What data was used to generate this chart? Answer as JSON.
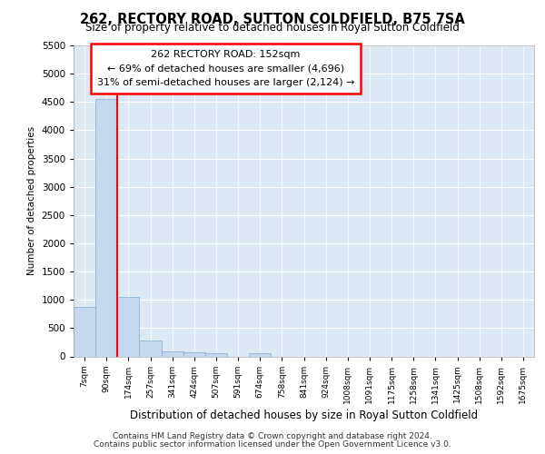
{
  "title": "262, RECTORY ROAD, SUTTON COLDFIELD, B75 7SA",
  "subtitle": "Size of property relative to detached houses in Royal Sutton Coldfield",
  "xlabel": "Distribution of detached houses by size in Royal Sutton Coldfield",
  "ylabel": "Number of detached properties",
  "categories": [
    "7sqm",
    "90sqm",
    "174sqm",
    "257sqm",
    "341sqm",
    "424sqm",
    "507sqm",
    "591sqm",
    "674sqm",
    "758sqm",
    "841sqm",
    "924sqm",
    "1008sqm",
    "1091sqm",
    "1175sqm",
    "1258sqm",
    "1341sqm",
    "1425sqm",
    "1508sqm",
    "1592sqm",
    "1675sqm"
  ],
  "values": [
    870,
    4550,
    1050,
    280,
    90,
    75,
    55,
    0,
    55,
    0,
    0,
    0,
    0,
    0,
    0,
    0,
    0,
    0,
    0,
    0,
    0
  ],
  "bar_color": "#c5d8f0",
  "bar_edge_color": "#8ab4d8",
  "red_line_x": 1.5,
  "annotation_title": "262 RECTORY ROAD: 152sqm",
  "annotation_line1": "← 69% of detached houses are smaller (4,696)",
  "annotation_line2": "31% of semi-detached houses are larger (2,124) →",
  "ylim": [
    0,
    5500
  ],
  "yticks": [
    0,
    500,
    1000,
    1500,
    2000,
    2500,
    3000,
    3500,
    4000,
    4500,
    5000,
    5500
  ],
  "plot_bg_color": "#dde8f5",
  "footer1": "Contains HM Land Registry data © Crown copyright and database right 2024.",
  "footer2": "Contains public sector information licensed under the Open Government Licence v3.0."
}
